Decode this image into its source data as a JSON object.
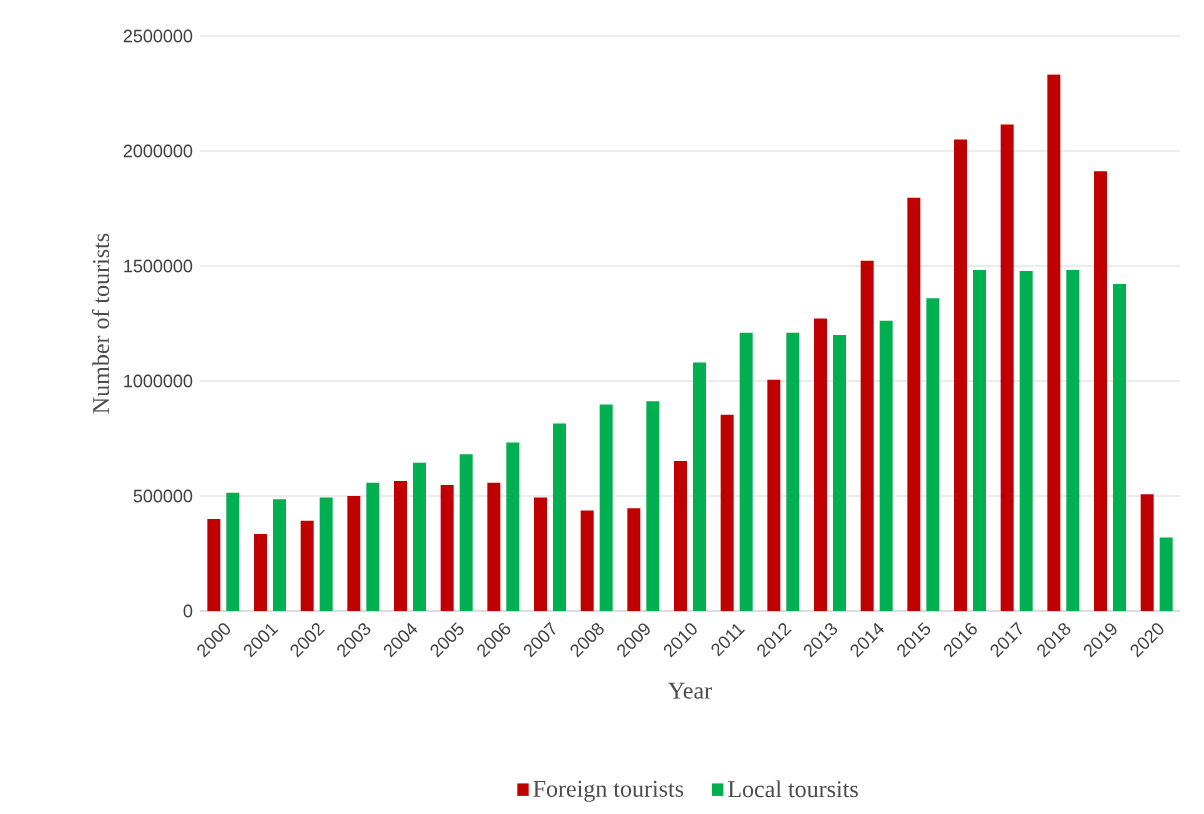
{
  "chart_data": {
    "type": "bar",
    "xlabel": "Year",
    "ylabel": "Number of tourists",
    "categories": [
      "2000",
      "2001",
      "2002",
      "2003",
      "2004",
      "2005",
      "2006",
      "2007",
      "2008",
      "2009",
      "2010",
      "2011",
      "2012",
      "2013",
      "2014",
      "2015",
      "2016",
      "2017",
      "2018",
      "2019",
      "2020"
    ],
    "series": [
      {
        "name": "Foreign tourists",
        "color": "#c00000",
        "values": [
          400000,
          335000,
          392000,
          500000,
          565000,
          548000,
          558000,
          493000,
          437000,
          447000,
          652000,
          853000,
          1005000,
          1272000,
          1523000,
          1797000,
          2050000,
          2115000,
          2333000,
          1912000,
          508000
        ]
      },
      {
        "name": "Local toursits",
        "color": "#00b050",
        "values": [
          514000,
          486000,
          493000,
          558000,
          645000,
          682000,
          733000,
          815000,
          898000,
          912000,
          1080000,
          1210000,
          1210000,
          1200000,
          1262000,
          1360000,
          1483000,
          1478000,
          1483000,
          1422000,
          320000
        ]
      }
    ],
    "ylim": [
      0,
      2500000
    ],
    "yticks": [
      0,
      500000,
      1000000,
      1500000,
      2000000,
      2500000
    ],
    "grid": "y",
    "legend": "bottom"
  }
}
